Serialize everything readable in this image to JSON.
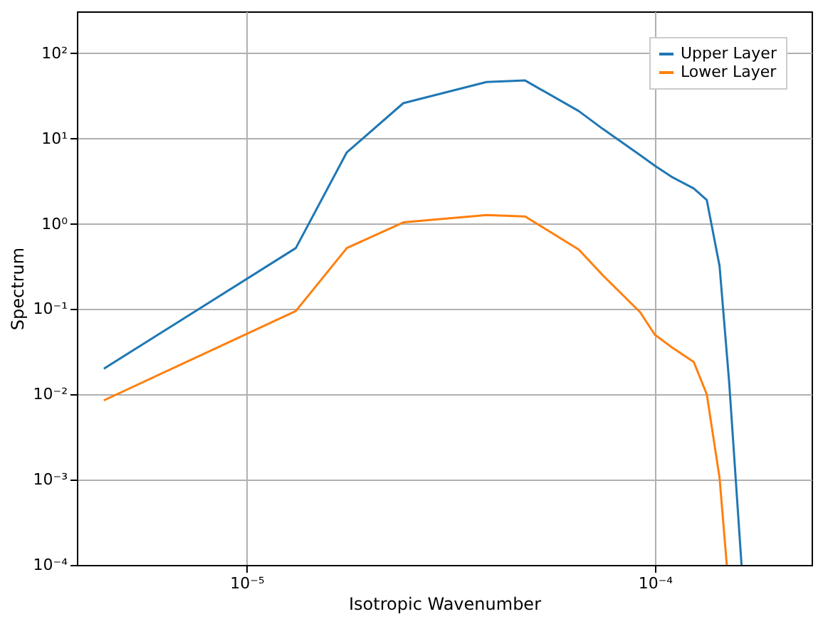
{
  "chart_data": {
    "type": "line",
    "xlabel": "Isotropic Wavenumber",
    "ylabel": "Spectrum",
    "log": "xy",
    "grid": true,
    "legend": "top right",
    "line_style": "solid",
    "marker": "none",
    "xlim": [
      3.84e-06,
      0.000242
    ],
    "ylim": [
      0.0001,
      310
    ],
    "xticks": [
      {
        "value": 1e-05,
        "label": "10⁻⁵"
      },
      {
        "value": 0.0001,
        "label": "10⁻⁴"
      }
    ],
    "yticks": [
      {
        "value": 0.0001,
        "label": "10⁻⁴"
      },
      {
        "value": 0.001,
        "label": "10⁻³"
      },
      {
        "value": 0.01,
        "label": "10⁻²"
      },
      {
        "value": 0.1,
        "label": "10⁻¹"
      },
      {
        "value": 1,
        "label": "10⁰"
      },
      {
        "value": 10,
        "label": "10¹"
      },
      {
        "value": 100,
        "label": "10²"
      }
    ],
    "series": [
      {
        "name": "Upper Layer",
        "color": "#1f77b4",
        "x": [
          4.47e-06,
          1.32e-05,
          1.76e-05,
          2.42e-05,
          3.87e-05,
          4.81e-05,
          6.51e-05,
          7.45e-05,
          9.2e-05,
          0.0001,
          0.0001106,
          0.0001245,
          0.000134,
          0.000144,
          0.000152,
          0.000163
        ],
        "values": [
          0.02,
          0.52,
          6.9,
          26,
          46,
          48,
          21,
          13,
          6.4,
          4.8,
          3.5,
          2.6,
          1.9,
          0.32,
          0.014,
          0.0001
        ]
      },
      {
        "name": "Lower Layer",
        "color": "#ff7f0e",
        "x": [
          4.47e-06,
          1.32e-05,
          1.76e-05,
          2.42e-05,
          3.87e-05,
          4.81e-05,
          6.51e-05,
          7.45e-05,
          9.2e-05,
          0.0001,
          0.0001106,
          0.0001245,
          0.000134,
          0.000144,
          0.00015
        ],
        "values": [
          0.0085,
          0.095,
          0.52,
          1.04,
          1.27,
          1.22,
          0.5,
          0.25,
          0.092,
          0.05,
          0.035,
          0.024,
          0.01,
          0.00105,
          0.0001
        ]
      }
    ]
  }
}
